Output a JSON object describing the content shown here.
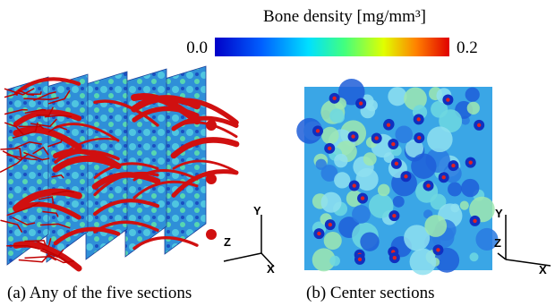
{
  "colorbar": {
    "title": "Bone density [mg/mm³]",
    "range": [
      0,
      0.2
    ],
    "ticks": [
      {
        "value": 0,
        "label": "0.0"
      },
      {
        "value": 0.2,
        "label": "0.2"
      }
    ]
  },
  "panels": [
    {
      "caption": "(a) Any of the five sections",
      "axes": {
        "y": "Y",
        "z": "Z",
        "x": "X"
      }
    },
    {
      "caption": "(b) Center sections",
      "axes": {
        "y": "Y",
        "z": "Z",
        "x": "X"
      }
    }
  ]
}
